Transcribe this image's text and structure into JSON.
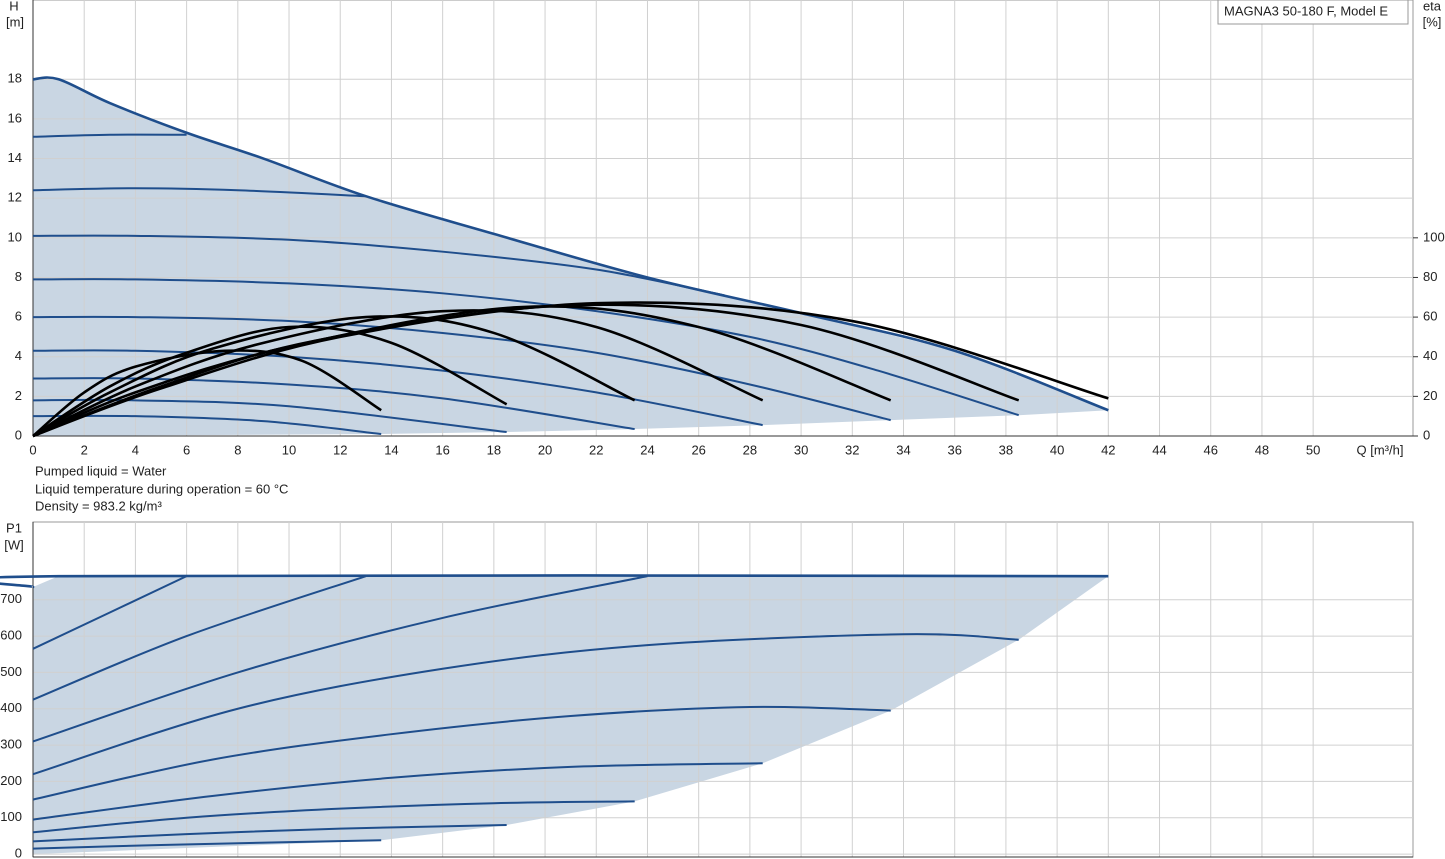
{
  "chart_data": [
    {
      "type": "line",
      "model": "MAGNA3 50-180 F, Model E",
      "ylabel": [
        "H",
        "[m]"
      ],
      "y2label": [
        "eta",
        "[%]"
      ],
      "xlabel": "Q [m³/h]",
      "xlim": [
        0,
        53.9
      ],
      "xticks": [
        0,
        2,
        4,
        6,
        8,
        10,
        12,
        14,
        16,
        18,
        20,
        22,
        24,
        26,
        28,
        30,
        32,
        34,
        36,
        38,
        40,
        42,
        44,
        46,
        48,
        50
      ],
      "ylim": [
        0,
        22
      ],
      "yticks": [
        0,
        2,
        4,
        6,
        8,
        10,
        12,
        14,
        16,
        18
      ],
      "y2lim": [
        0,
        220
      ],
      "y2ticks": [
        0,
        20,
        40,
        60,
        80,
        100
      ],
      "grid": true,
      "fill": "#c9d6e3",
      "series": [
        {
          "color": "#1f4e8c",
          "x": [
            0,
            1,
            3,
            6,
            9,
            13,
            18,
            24,
            30,
            36,
            42
          ],
          "values": [
            18,
            18,
            16.8,
            15.3,
            14,
            12.1,
            10.2,
            8,
            6.2,
            4.3,
            1.3
          ]
        },
        {
          "color": "#1f4e8c",
          "x": [
            0,
            3,
            6
          ],
          "values": [
            15.1,
            15.2,
            15.2
          ]
        },
        {
          "color": "#1f4e8c",
          "x": [
            0,
            4,
            8,
            13
          ],
          "values": [
            12.4,
            12.5,
            12.4,
            12.1
          ]
        },
        {
          "color": "#1f4e8c",
          "x": [
            0,
            4,
            10,
            16,
            22,
            27
          ],
          "values": [
            10.1,
            10.1,
            9.9,
            9.3,
            8.4,
            7.1
          ]
        },
        {
          "color": "#1f4e8c",
          "x": [
            0,
            4,
            10,
            16,
            22,
            28,
            33,
            38.5
          ],
          "values": [
            7.9,
            7.9,
            7.7,
            7.2,
            6.3,
            5.0,
            3.3,
            1.05
          ]
        },
        {
          "color": "#1f4e8c",
          "x": [
            0,
            4,
            10,
            16,
            22,
            28,
            33.5
          ],
          "values": [
            6.0,
            6.0,
            5.8,
            5.2,
            4.2,
            2.6,
            0.8
          ]
        },
        {
          "color": "#1f4e8c",
          "x": [
            0,
            4,
            10,
            16,
            22,
            28.5
          ],
          "values": [
            4.3,
            4.3,
            4.0,
            3.3,
            2.2,
            0.55
          ]
        },
        {
          "color": "#1f4e8c",
          "x": [
            0,
            4,
            10,
            16,
            23.5
          ],
          "values": [
            2.9,
            2.9,
            2.6,
            1.9,
            0.35
          ]
        },
        {
          "color": "#1f4e8c",
          "x": [
            0,
            4,
            10,
            18.5
          ],
          "values": [
            1.8,
            1.8,
            1.5,
            0.2
          ]
        },
        {
          "color": "#1f4e8c",
          "x": [
            0,
            4,
            9,
            13.6
          ],
          "values": [
            1.0,
            1.0,
            0.75,
            0.1
          ]
        },
        {
          "color": "#000000",
          "axis": "y2",
          "x": [
            0,
            2,
            4,
            7.5,
            10.5,
            13.6
          ],
          "values": [
            0,
            22,
            35,
            43,
            38,
            13
          ]
        },
        {
          "color": "#000000",
          "axis": "y2",
          "x": [
            0,
            3,
            6,
            10,
            14,
            18.5
          ],
          "values": [
            0,
            25,
            42,
            55,
            47,
            16
          ]
        },
        {
          "color": "#000000",
          "axis": "y2",
          "x": [
            0,
            3,
            7,
            13,
            18,
            23.5
          ],
          "values": [
            0,
            22,
            44,
            60,
            52,
            18
          ]
        },
        {
          "color": "#000000",
          "axis": "y2",
          "x": [
            0,
            4,
            9,
            16,
            22,
            28.5
          ],
          "values": [
            0,
            25,
            47,
            63,
            55,
            18
          ]
        },
        {
          "color": "#000000",
          "axis": "y2",
          "x": [
            0,
            4,
            10,
            19,
            26,
            33.5
          ],
          "values": [
            0,
            22,
            45,
            65,
            55,
            18
          ]
        },
        {
          "color": "#000000",
          "axis": "y2",
          "x": [
            0,
            5,
            11,
            21,
            30,
            38.5
          ],
          "values": [
            0,
            25,
            48,
            66,
            56,
            18
          ]
        },
        {
          "color": "#000000",
          "axis": "y2",
          "x": [
            0,
            5,
            12,
            22,
            32,
            42
          ],
          "values": [
            0,
            24,
            50,
            67,
            58,
            19
          ]
        }
      ],
      "notes": [
        "Pumped liquid = Water",
        "Liquid temperature during operation = 60 °C",
        "Density = 983.2 kg/m³"
      ]
    },
    {
      "type": "line",
      "ylabel": [
        "P1",
        "[W]"
      ],
      "xlim": [
        0,
        53.9
      ],
      "ylim": [
        -8,
        914
      ],
      "yticks": [
        0,
        100,
        200,
        300,
        400,
        500,
        600,
        700
      ],
      "grid": true,
      "fill": "#c9d6e3",
      "series": [
        {
          "color": "#1f4e8c",
          "x": [
            0,
            1,
            42
          ],
          "values": [
            735,
            765,
            765
          ]
        },
        {
          "color": "#1f4e8c",
          "x": [
            0,
            6
          ],
          "values": [
            565,
            765
          ]
        },
        {
          "color": "#1f4e8c",
          "x": [
            0,
            6,
            13
          ],
          "values": [
            425,
            600,
            765
          ]
        },
        {
          "color": "#1f4e8c",
          "x": [
            0,
            8,
            16,
            24
          ],
          "values": [
            310,
            500,
            650,
            765
          ]
        },
        {
          "color": "#1f4e8c",
          "x": [
            0,
            8,
            16,
            24,
            34,
            38.5
          ],
          "values": [
            220,
            400,
            510,
            575,
            605,
            590
          ]
        },
        {
          "color": "#1f4e8c",
          "x": [
            0,
            7,
            14,
            21,
            28,
            33.5
          ],
          "values": [
            150,
            260,
            330,
            380,
            405,
            395
          ]
        },
        {
          "color": "#1f4e8c",
          "x": [
            0,
            7,
            14,
            21,
            28.5
          ],
          "values": [
            95,
            160,
            210,
            240,
            250
          ]
        },
        {
          "color": "#1f4e8c",
          "x": [
            0,
            6,
            12,
            18,
            23.5
          ],
          "values": [
            60,
            100,
            125,
            140,
            145
          ]
        },
        {
          "color": "#1f4e8c",
          "x": [
            0,
            6,
            12,
            18.5
          ],
          "values": [
            35,
            55,
            70,
            80
          ]
        },
        {
          "color": "#1f4e8c",
          "x": [
            0,
            5,
            10,
            13.6
          ],
          "values": [
            15,
            25,
            33,
            38
          ]
        }
      ]
    }
  ]
}
